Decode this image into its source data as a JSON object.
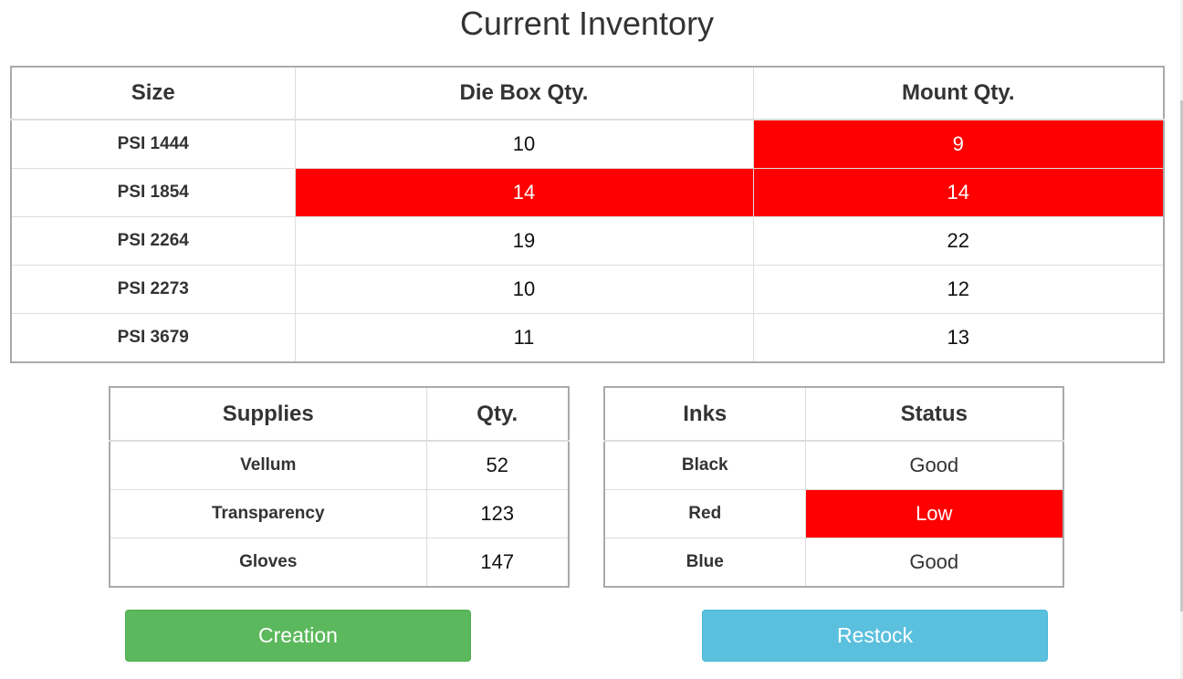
{
  "title": "Current Inventory",
  "inventory": {
    "headers": [
      "Size",
      "Die Box Qty.",
      "Mount Qty."
    ],
    "rows": [
      {
        "size": "PSI 1444",
        "die_box": "10",
        "mount": "9",
        "die_low": false,
        "mount_low": true
      },
      {
        "size": "PSI 1854",
        "die_box": "14",
        "mount": "14",
        "die_low": true,
        "mount_low": true
      },
      {
        "size": "PSI 2264",
        "die_box": "19",
        "mount": "22",
        "die_low": false,
        "mount_low": false
      },
      {
        "size": "PSI 2273",
        "die_box": "10",
        "mount": "12",
        "die_low": false,
        "mount_low": false
      },
      {
        "size": "PSI 3679",
        "die_box": "11",
        "mount": "13",
        "die_low": false,
        "mount_low": false
      }
    ]
  },
  "supplies": {
    "headers": [
      "Supplies",
      "Qty."
    ],
    "rows": [
      {
        "name": "Vellum",
        "qty": "52"
      },
      {
        "name": "Transparency",
        "qty": "123"
      },
      {
        "name": "Gloves",
        "qty": "147"
      }
    ]
  },
  "inks": {
    "headers": [
      "Inks",
      "Status"
    ],
    "rows": [
      {
        "name": "Black",
        "status": "Good",
        "low": false
      },
      {
        "name": "Red",
        "status": "Low",
        "low": true
      },
      {
        "name": "Blue",
        "status": "Good",
        "low": false
      }
    ]
  },
  "buttons": {
    "creation": "Creation",
    "restock": "Restock"
  },
  "colors": {
    "alert": "#ff0000",
    "creation": "#5cb85c",
    "restock": "#5bc0de"
  }
}
